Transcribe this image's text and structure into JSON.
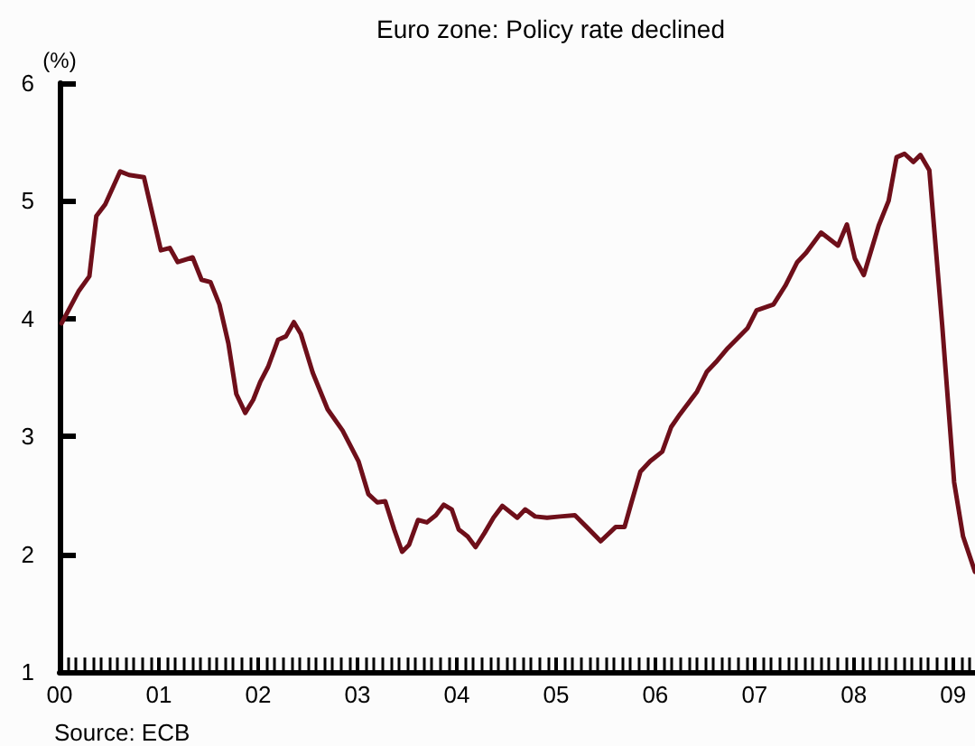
{
  "chart_data": {
    "type": "line",
    "title": "Euro zone: Policy rate declined",
    "ylabel": "(%)",
    "annotations": [
      "Source: ECB"
    ],
    "x": [
      2000.02,
      2000.19,
      2000.3,
      2000.37,
      2000.46,
      2000.61,
      2000.7,
      2000.85,
      2001.02,
      2001.11,
      2001.19,
      2001.34,
      2001.43,
      2001.52,
      2001.61,
      2001.7,
      2001.78,
      2001.87,
      2001.95,
      2002.02,
      2002.1,
      2002.2,
      2002.28,
      2002.36,
      2002.43,
      2002.55,
      2002.7,
      2002.85,
      2003.01,
      2003.11,
      2003.2,
      2003.28,
      2003.37,
      2003.45,
      2003.52,
      2003.61,
      2003.7,
      2003.79,
      2003.87,
      2003.95,
      2004.02,
      2004.11,
      2004.19,
      2004.28,
      2004.37,
      2004.46,
      2004.61,
      2004.69,
      2004.79,
      2004.91,
      2005.04,
      2005.19,
      2005.31,
      2005.45,
      2005.6,
      2005.69,
      2005.76,
      2005.85,
      2005.95,
      2006.07,
      2006.16,
      2006.25,
      2006.42,
      2006.52,
      2006.61,
      2006.73,
      2006.93,
      2007.02,
      2007.19,
      2007.31,
      2007.43,
      2007.52,
      2007.67,
      2007.84,
      2007.93,
      2008.01,
      2008.1,
      2008.25,
      2008.35,
      2008.43,
      2008.51,
      2008.6,
      2008.67,
      2008.76,
      2008.89,
      2009.01,
      2009.1,
      2009.22
    ],
    "series": [
      {
        "color": "#6e0f1a",
        "values": [
          3.96,
          4.23,
          4.36,
          4.87,
          4.97,
          5.25,
          5.22,
          5.2,
          4.58,
          4.6,
          4.48,
          4.52,
          4.33,
          4.31,
          4.12,
          3.79,
          3.36,
          3.2,
          3.31,
          3.46,
          3.59,
          3.82,
          3.85,
          3.97,
          3.87,
          3.54,
          3.23,
          3.05,
          2.79,
          2.51,
          2.44,
          2.45,
          2.21,
          2.02,
          2.08,
          2.29,
          2.27,
          2.33,
          2.42,
          2.38,
          2.21,
          2.15,
          2.06,
          2.18,
          2.31,
          2.41,
          2.31,
          2.38,
          2.32,
          2.31,
          2.32,
          2.33,
          2.23,
          2.11,
          2.23,
          2.23,
          2.44,
          2.7,
          2.79,
          2.87,
          3.08,
          3.19,
          3.38,
          3.55,
          3.63,
          3.75,
          3.92,
          4.07,
          4.12,
          4.28,
          4.48,
          4.56,
          4.73,
          4.62,
          4.8,
          4.51,
          4.37,
          4.79,
          5.0,
          5.37,
          5.4,
          5.33,
          5.39,
          5.26,
          3.94,
          2.61,
          2.15,
          1.85
        ]
      }
    ],
    "xlim": [
      2000,
      2009.22
    ],
    "xticks": [
      {
        "value": 2000,
        "label": "00"
      },
      {
        "value": 2001,
        "label": "01"
      },
      {
        "value": 2002,
        "label": "02"
      },
      {
        "value": 2003,
        "label": "03"
      },
      {
        "value": 2004,
        "label": "04"
      },
      {
        "value": 2005,
        "label": "05"
      },
      {
        "value": 2006,
        "label": "06"
      },
      {
        "value": 2007,
        "label": "07"
      },
      {
        "value": 2008,
        "label": "08"
      },
      {
        "value": 2009,
        "label": "09"
      }
    ],
    "ylim": [
      1,
      6
    ],
    "yticks": [
      1,
      2,
      3,
      4,
      5,
      6
    ],
    "grid": false,
    "marker": "none",
    "line_style": "solid"
  }
}
